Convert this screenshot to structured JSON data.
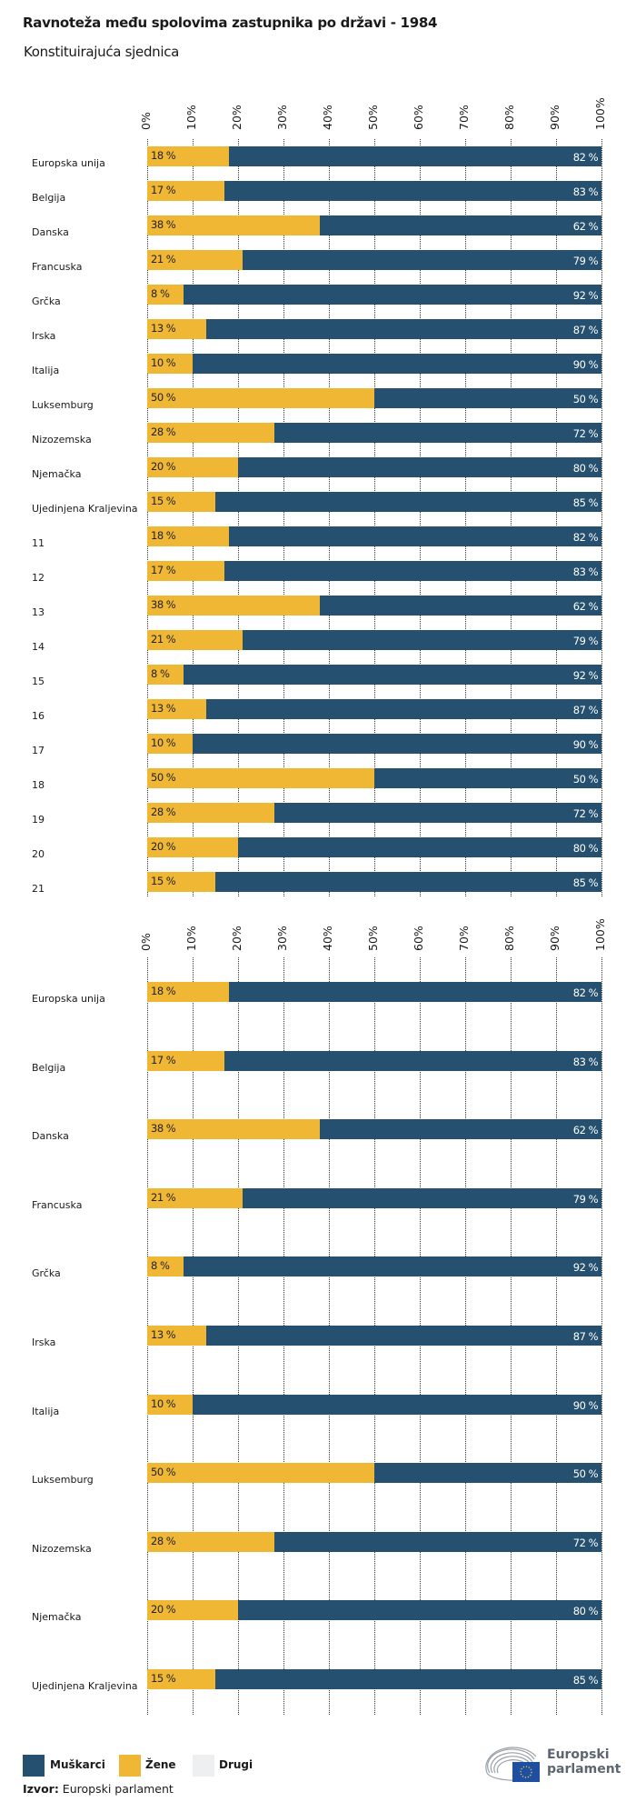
{
  "header": {
    "title": "Ravnoteža među spolovima zastupnika po državi - 1984",
    "subtitle": "Konstituirajuća sjednica"
  },
  "colors": {
    "muskarci": "#25506f",
    "zene": "#efb734",
    "drugi": "#eeeff0"
  },
  "chart_data": [
    {
      "type": "bar",
      "orientation": "horizontal-stacked-100",
      "ticks": [
        "0%",
        "10%",
        "20%",
        "30%",
        "40%",
        "50%",
        "60%",
        "70%",
        "80%",
        "90%",
        "100%"
      ],
      "xlim": [
        0,
        100
      ],
      "grid": true,
      "categories": [
        "Europska unija",
        "Belgija",
        "Danska",
        "Francuska",
        "Grčka",
        "Irska",
        "Italija",
        "Luksemburg",
        "Nizozemska",
        "Njemačka",
        "Ujedinjena Kraljevina",
        "11",
        "12",
        "13",
        "14",
        "15",
        "16",
        "17",
        "18",
        "19",
        "20",
        "21"
      ],
      "series": [
        {
          "name": "Žene",
          "values": [
            18,
            17,
            38,
            21,
            8,
            13,
            10,
            50,
            28,
            20,
            15,
            18,
            17,
            38,
            21,
            8,
            13,
            10,
            50,
            28,
            20,
            15
          ]
        },
        {
          "name": "Muškarci",
          "values": [
            82,
            83,
            62,
            79,
            92,
            87,
            90,
            50,
            72,
            80,
            85,
            82,
            83,
            62,
            79,
            92,
            87,
            90,
            50,
            72,
            80,
            85
          ]
        }
      ]
    },
    {
      "type": "bar",
      "orientation": "horizontal-stacked-100",
      "ticks": [
        "0%",
        "10%",
        "20%",
        "30%",
        "40%",
        "50%",
        "60%",
        "70%",
        "80%",
        "90%",
        "100%"
      ],
      "xlim": [
        0,
        100
      ],
      "grid": true,
      "categories": [
        "Europska unija",
        "Belgija",
        "Danska",
        "Francuska",
        "Grčka",
        "Irska",
        "Italija",
        "Luksemburg",
        "Nizozemska",
        "Njemačka",
        "Ujedinjena Kraljevina"
      ],
      "series": [
        {
          "name": "Žene",
          "values": [
            18,
            17,
            38,
            21,
            8,
            13,
            10,
            50,
            28,
            20,
            15
          ]
        },
        {
          "name": "Muškarci",
          "values": [
            82,
            83,
            62,
            79,
            92,
            87,
            90,
            50,
            72,
            80,
            85
          ]
        }
      ]
    }
  ],
  "legend": {
    "items": [
      {
        "label": "Muškarci",
        "color": "#25506f"
      },
      {
        "label": "Žene",
        "color": "#efb734"
      },
      {
        "label": "Drugi",
        "color": "#eeeff0"
      }
    ]
  },
  "footer": {
    "source_label": "Izvor:",
    "source_text": " Europski parlament"
  },
  "logo": {
    "text_line1": "Europski",
    "text_line2": "parlament"
  }
}
